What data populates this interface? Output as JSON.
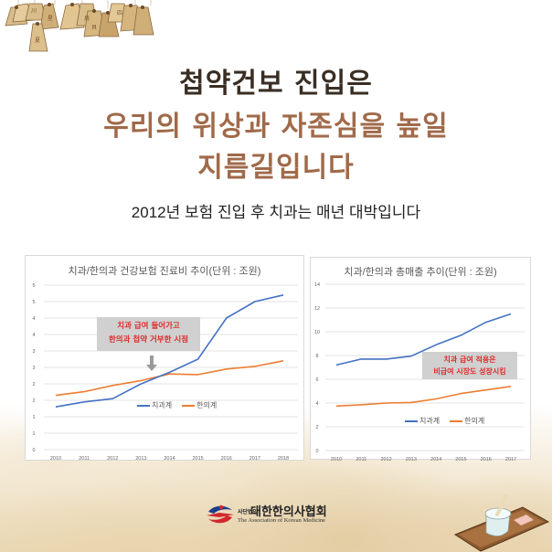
{
  "headline": {
    "line1": "첩약건보 진입은",
    "line2": "우리의 위상과 자존심을 높일",
    "line3": "지름길입니다"
  },
  "subtitle": "2012년 보험 진입 후 치과는 매년 대박입니다",
  "colors": {
    "headline_dark": "#3a2e24",
    "headline_accent": "#a06a4a",
    "series_dental": "#4472c4",
    "series_korean_medicine": "#ed7d31",
    "annotation_text": "#e02b2b",
    "annotation_bg": "#d0d0d0"
  },
  "chart_data": [
    {
      "type": "line",
      "title": "치과/한의과 건강보험 진료비 추이(단위 : 조원)",
      "xlabel": "",
      "ylabel": "",
      "x": [
        "2010",
        "2011",
        "2012",
        "2013",
        "2014",
        "2015",
        "2016",
        "2017",
        "2018"
      ],
      "ytick_labels": [
        "0",
        "1",
        "1",
        "2",
        "2",
        "3",
        "3",
        "4",
        "4",
        "5",
        "5"
      ],
      "ylim": [
        0,
        5
      ],
      "ystep": 0.5,
      "grid": true,
      "legend_position": "inside-center",
      "series": [
        {
          "name": "치과계",
          "color": "#4472c4",
          "values": [
            1.3,
            1.45,
            1.55,
            2.0,
            2.35,
            2.75,
            4.0,
            4.5,
            4.7
          ]
        },
        {
          "name": "한의계",
          "color": "#ed7d31",
          "values": [
            1.65,
            1.76,
            1.95,
            2.1,
            2.3,
            2.28,
            2.45,
            2.53,
            2.7
          ]
        }
      ],
      "annotation": {
        "line1": "치과 급여 들어가고",
        "line2": "한의과 첩약 거부한 시점",
        "arrow_at": "2013-2014"
      }
    },
    {
      "type": "line",
      "title": "치과/한의과 총매출 추이(단위 : 조원)",
      "xlabel": "",
      "ylabel": "",
      "x": [
        "2010",
        "2011",
        "2012",
        "2013",
        "2014",
        "2015",
        "2016",
        "2017"
      ],
      "ytick_labels": [
        "0",
        "2",
        "4",
        "6",
        "8",
        "10",
        "12",
        "14"
      ],
      "ylim": [
        0,
        14
      ],
      "ystep": 2,
      "grid": true,
      "legend_position": "inside-center",
      "series": [
        {
          "name": "치과계",
          "color": "#4472c4",
          "values": [
            7.2,
            7.7,
            7.7,
            7.95,
            8.9,
            9.7,
            10.8,
            11.5
          ]
        },
        {
          "name": "한의계",
          "color": "#ed7d31",
          "values": [
            3.75,
            3.85,
            4.0,
            4.05,
            4.35,
            4.8,
            5.1,
            5.4
          ]
        }
      ],
      "annotation": {
        "line1": "치과 급여 적용은",
        "line2": "비급여 시장도 성장시킴"
      }
    }
  ],
  "logo": {
    "small_prefix": "사단법인",
    "name_kr": "대한한의사협회",
    "name_en": "The Association of Korean Medicine"
  }
}
